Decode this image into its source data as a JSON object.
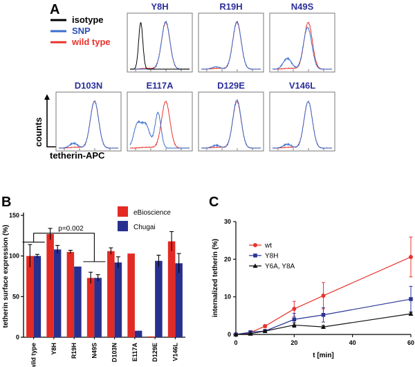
{
  "panels": {
    "a": "A",
    "b": "B",
    "c": "C"
  },
  "panel_a": {
    "legend": [
      {
        "label": "isotype",
        "color": "#000000"
      },
      {
        "label": "SNP",
        "color": "#3a6fd0"
      },
      {
        "label": "wild type",
        "color": "#e8332e"
      }
    ],
    "legend_label_colors": [
      "#000000",
      "#2b4fb5",
      "#e8332e"
    ],
    "ylabel": "counts",
    "xlabel": "tetherin-APC",
    "title_color": "#2b2f9a"
  },
  "chart_data": [
    {
      "type": "bar",
      "title": "",
      "ylabel": "tetherin surface expression (%)",
      "xlabel": "",
      "ylim": [
        0,
        150
      ],
      "yticks": [
        0,
        50,
        100,
        150
      ],
      "categories": [
        "wild type",
        "Y8H",
        "R19H",
        "N49S",
        "D103N",
        "E117A",
        "D129E",
        "V146L"
      ],
      "series": [
        {
          "name": "eBioscience",
          "color": "#e32a24",
          "values": [
            100,
            127,
            105,
            73,
            106,
            103,
            1,
            118
          ],
          "errors": [
            14,
            7,
            2,
            7,
            4,
            0,
            0,
            12
          ]
        },
        {
          "name": "Chugai",
          "color": "#272f8f",
          "values": [
            100,
            108,
            87,
            73,
            92,
            8,
            94,
            91
          ],
          "errors": [
            2,
            5,
            0,
            4,
            7,
            0,
            7,
            12
          ]
        }
      ],
      "annotation": "p=0.002",
      "legend_position": "top-right"
    },
    {
      "type": "line",
      "title": "",
      "xlabel": "t [min]",
      "ylabel": "internalized tetherin (%)",
      "xlim": [
        0,
        60
      ],
      "ylim": [
        0,
        30
      ],
      "xticks": [
        0,
        20,
        40,
        60
      ],
      "yticks": [
        0,
        10,
        20,
        30
      ],
      "series": [
        {
          "name": "wt",
          "color": "#e8332e",
          "marker": "circle",
          "x": [
            0,
            5,
            10,
            20,
            30,
            60
          ],
          "y": [
            0,
            0.5,
            2.2,
            6.8,
            10.3,
            20.6
          ],
          "errors": [
            0,
            0.3,
            0.4,
            2.0,
            3.5,
            5.3
          ]
        },
        {
          "name": "Y8H",
          "color": "#2a3595",
          "marker": "square",
          "x": [
            0,
            5,
            10,
            20,
            30,
            60
          ],
          "y": [
            0,
            0.6,
            0.9,
            4.0,
            5.2,
            9.4
          ],
          "errors": [
            0,
            0.2,
            0.3,
            1.6,
            1.9,
            3.4
          ]
        },
        {
          "name": "Y6A, Y8A",
          "color": "#111111",
          "marker": "triangle",
          "x": [
            0,
            5,
            10,
            20,
            30,
            60
          ],
          "y": [
            0,
            0.2,
            0.9,
            2.5,
            2.0,
            5.5
          ],
          "errors": [
            0,
            0.1,
            0.2,
            0.6,
            0.4,
            0.4
          ]
        }
      ],
      "legend_position": "top-left"
    }
  ],
  "histograms": [
    {
      "title": "Y8H",
      "snp_shift": 0.0,
      "snp_low_bump": 0.0,
      "snp_peak_scale": 0.97,
      "isotype": true
    },
    {
      "title": "R19H",
      "snp_shift": 0.0,
      "snp_low_bump": 0.05,
      "snp_peak_scale": 0.97,
      "isotype": false
    },
    {
      "title": "N49S",
      "snp_shift": -0.01,
      "snp_low_bump": 0.22,
      "snp_peak_scale": 0.85,
      "isotype": false
    },
    {
      "title": "D103N",
      "snp_shift": 0.0,
      "snp_low_bump": 0.1,
      "snp_peak_scale": 0.96,
      "isotype": false
    },
    {
      "title": "E117A",
      "snp_shift": -0.35,
      "snp_low_bump": 0.6,
      "snp_peak_scale": 0.72,
      "isotype": false
    },
    {
      "title": "D129E",
      "snp_shift": 0.0,
      "snp_low_bump": 0.06,
      "snp_peak_scale": 0.98,
      "isotype": false
    },
    {
      "title": "V146L",
      "snp_shift": 0.0,
      "snp_low_bump": 0.08,
      "snp_peak_scale": 0.95,
      "isotype": false
    }
  ]
}
